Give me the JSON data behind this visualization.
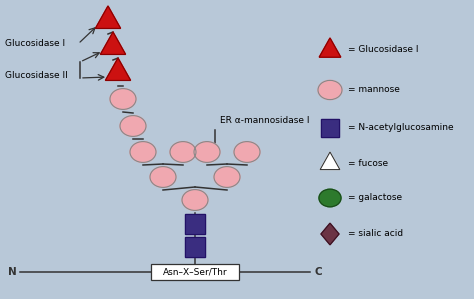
{
  "bg_color": "#b8c8d8",
  "mannose_color": "#f0a8b0",
  "glucose_color": "#cc1111",
  "glucose_edge": "#880000",
  "nag_color": "#3a2d80",
  "nag_edge": "#221166",
  "fucose_color": "#ffffff",
  "galactose_color": "#2d7a2d",
  "galactose_edge": "#1a4a1a",
  "sialic_color": "#6b3344",
  "sialic_edge": "#3a1122",
  "line_color": "#333333",
  "er_label": "ER α-mannosidase I",
  "asn_label": "Asn–X–Ser/Thr",
  "n_label": "N",
  "c_label": "C",
  "glucosidase1_label": "Glucosidase I",
  "glucosidase2_label": "Glucosidase II"
}
